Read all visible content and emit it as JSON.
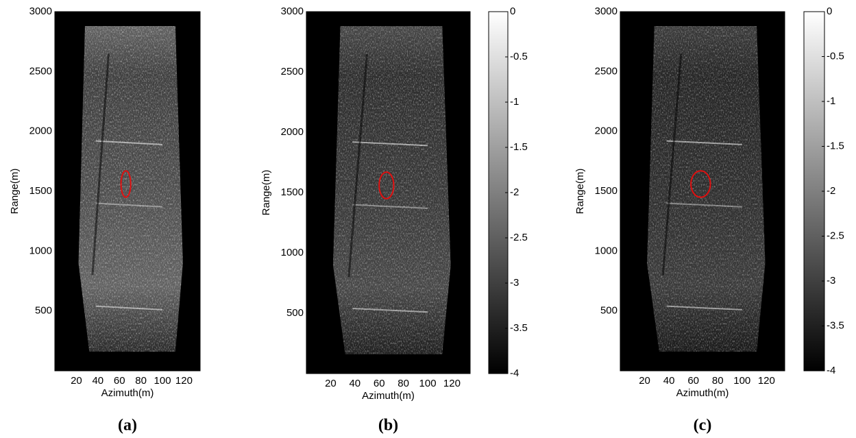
{
  "chart_data": [
    {
      "type": "image",
      "xlabel": "Azimuth(m)",
      "ylabel": "Range(m)",
      "panel_label": "(a)",
      "xlim": [
        0,
        135
      ],
      "ylim": [
        0,
        3000
      ],
      "xticks": [
        20,
        40,
        60,
        80,
        100,
        120
      ],
      "yticks": [
        500,
        1000,
        1500,
        2000,
        2500,
        3000
      ]
    },
    {
      "type": "image",
      "xlabel": "Azimuth(m)",
      "ylabel": "Range(m)",
      "panel_label": "(b)",
      "xlim": [
        0,
        135
      ],
      "ylim": [
        0,
        3000
      ],
      "xticks": [
        20,
        40,
        60,
        80,
        100,
        120
      ],
      "yticks": [
        500,
        1000,
        1500,
        2000,
        2500,
        3000
      ],
      "clim": [
        -4,
        0
      ],
      "cticks": [
        0,
        -0.5,
        -1,
        -1.5,
        -2,
        -2.5,
        -3,
        -3.5,
        -4
      ]
    },
    {
      "type": "image",
      "xlabel": "Azimuth(m)",
      "ylabel": "Range(m)",
      "panel_label": "(c)",
      "xlim": [
        0,
        135
      ],
      "ylim": [
        0,
        3000
      ],
      "xticks": [
        20,
        40,
        60,
        80,
        100,
        120
      ],
      "yticks": [
        500,
        1000,
        1500,
        2000,
        2500,
        3000
      ],
      "clim": [
        -4,
        0
      ],
      "cticks": [
        0,
        -0.5,
        -1,
        -1.5,
        -2,
        -2.5,
        -3,
        -3.5,
        -4
      ]
    }
  ]
}
